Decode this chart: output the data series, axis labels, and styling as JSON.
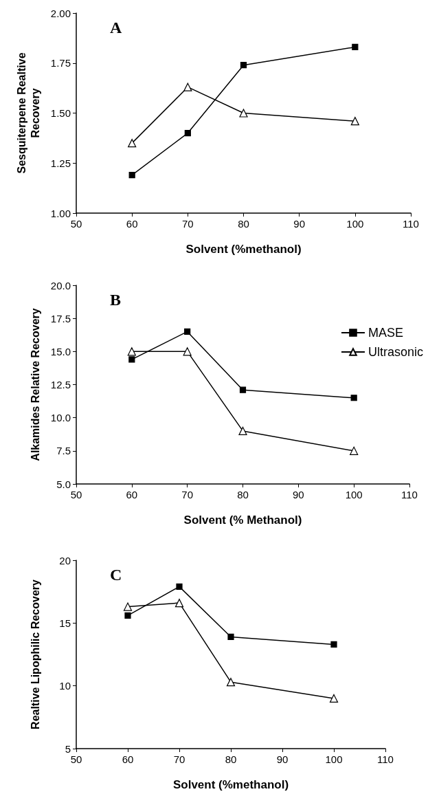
{
  "chart_data": [
    {
      "type": "line",
      "title": "A",
      "xlabel": "Solvent (%methanol)",
      "ylabel": "Sesquiterpene Realtive\nRecovery",
      "x": [
        60,
        70,
        80,
        100
      ],
      "series": [
        {
          "color": "#000000",
          "marker": "square",
          "values": [
            1.19,
            1.4,
            1.74,
            1.83
          ]
        },
        {
          "color": "#000000",
          "marker": "triangle",
          "values": [
            1.35,
            1.63,
            1.5,
            1.46
          ]
        }
      ],
      "xlim": [
        50,
        110
      ],
      "xticks": [
        50,
        60,
        70,
        80,
        90,
        100,
        110
      ],
      "ylim": [
        1.0,
        2.0
      ],
      "yticks": [
        {
          "value": 1.0,
          "label": "1.00"
        },
        {
          "value": 1.25,
          "label": "1.25"
        },
        {
          "value": 1.5,
          "label": "1.50"
        },
        {
          "value": 1.75,
          "label": "1.75"
        },
        {
          "value": 2.0,
          "label": "2.00"
        }
      ],
      "grid": false,
      "legend": false
    },
    {
      "type": "line",
      "title": "B",
      "xlabel": "Solvent (% Methanol)",
      "ylabel": "Alkamides Relative Recovery",
      "x": [
        60,
        70,
        80,
        100
      ],
      "series": [
        {
          "name": "MASE",
          "color": "#000000",
          "marker": "square",
          "values": [
            14.4,
            16.5,
            12.1,
            11.5
          ]
        },
        {
          "name": "Ultrasonic",
          "color": "#000000",
          "marker": "triangle",
          "values": [
            15.0,
            15.0,
            9.0,
            7.5
          ]
        }
      ],
      "xlim": [
        50,
        110
      ],
      "xticks": [
        50,
        60,
        70,
        80,
        90,
        100,
        110
      ],
      "ylim": [
        5.0,
        20.0
      ],
      "yticks": [
        {
          "value": 5,
          "label": "5.0"
        },
        {
          "value": 7.5,
          "label": "7.5"
        },
        {
          "value": 10,
          "label": "10.0"
        },
        {
          "value": 12.5,
          "label": "12.5"
        },
        {
          "value": 15,
          "label": "15.0"
        },
        {
          "value": 17.5,
          "label": "17.5"
        },
        {
          "value": 20,
          "label": "20.0"
        }
      ],
      "grid": false,
      "legend": "top right"
    },
    {
      "type": "line",
      "title": "C",
      "xlabel": "Solvent (%methanol)",
      "ylabel": "Realtive Lipophilic Recovery",
      "x": [
        60,
        70,
        80,
        100
      ],
      "series": [
        {
          "color": "#000000",
          "marker": "square",
          "values": [
            15.6,
            17.9,
            13.9,
            13.3
          ]
        },
        {
          "color": "#000000",
          "marker": "triangle",
          "values": [
            16.3,
            16.6,
            10.3,
            9.0
          ]
        }
      ],
      "xlim": [
        50,
        110
      ],
      "xticks": [
        50,
        60,
        70,
        80,
        90,
        100,
        110
      ],
      "ylim": [
        5,
        20
      ],
      "yticks": [
        5,
        10,
        15,
        20
      ],
      "grid": false,
      "legend": false
    }
  ]
}
